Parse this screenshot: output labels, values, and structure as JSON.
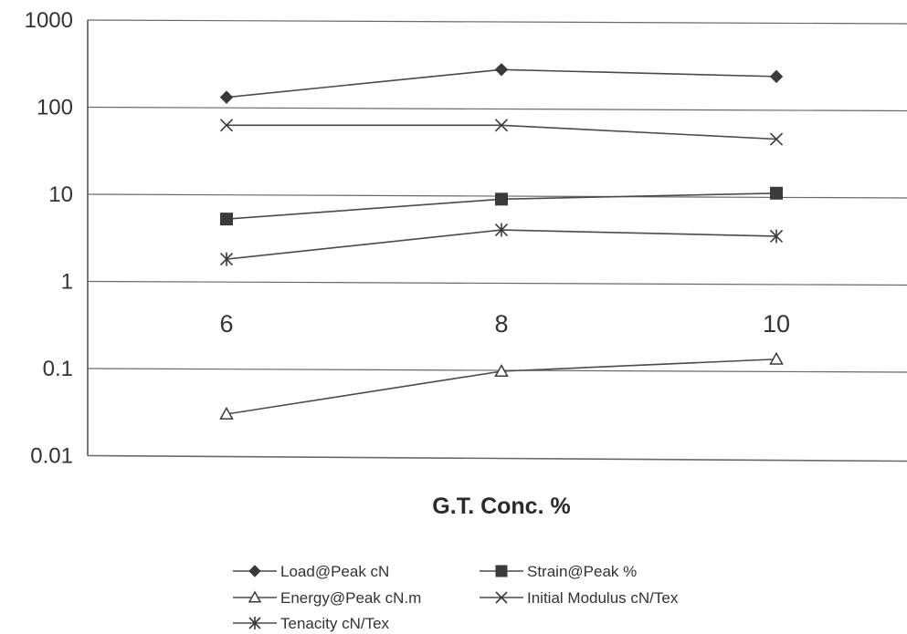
{
  "chart_data": {
    "type": "line",
    "title": "",
    "xlabel": "G.T. Conc. %",
    "ylabel": "",
    "y_scale": "log",
    "ylim": [
      0.01,
      1000
    ],
    "y_ticks": [
      "1000",
      "100",
      "10",
      "1",
      "0.1",
      "0.01"
    ],
    "grid": true,
    "legend_position": "bottom",
    "categories": [
      "6",
      "8",
      "10"
    ],
    "series": [
      {
        "name": "Load@Peak cN",
        "marker": "diamond-filled",
        "values": [
          130,
          270,
          225
        ]
      },
      {
        "name": "Strain@Peak %",
        "marker": "square-filled",
        "values": [
          5.2,
          8.8,
          10.3
        ]
      },
      {
        "name": "Energy@Peak cN.m",
        "marker": "triangle-open",
        "values": [
          0.03,
          0.093,
          0.128
        ]
      },
      {
        "name": "Initial Modulus cN/Tex",
        "marker": "x",
        "values": [
          62,
          62,
          43
        ]
      },
      {
        "name": "Tenacity cN/Tex",
        "marker": "asterisk",
        "values": [
          1.8,
          3.9,
          3.3
        ]
      }
    ]
  }
}
